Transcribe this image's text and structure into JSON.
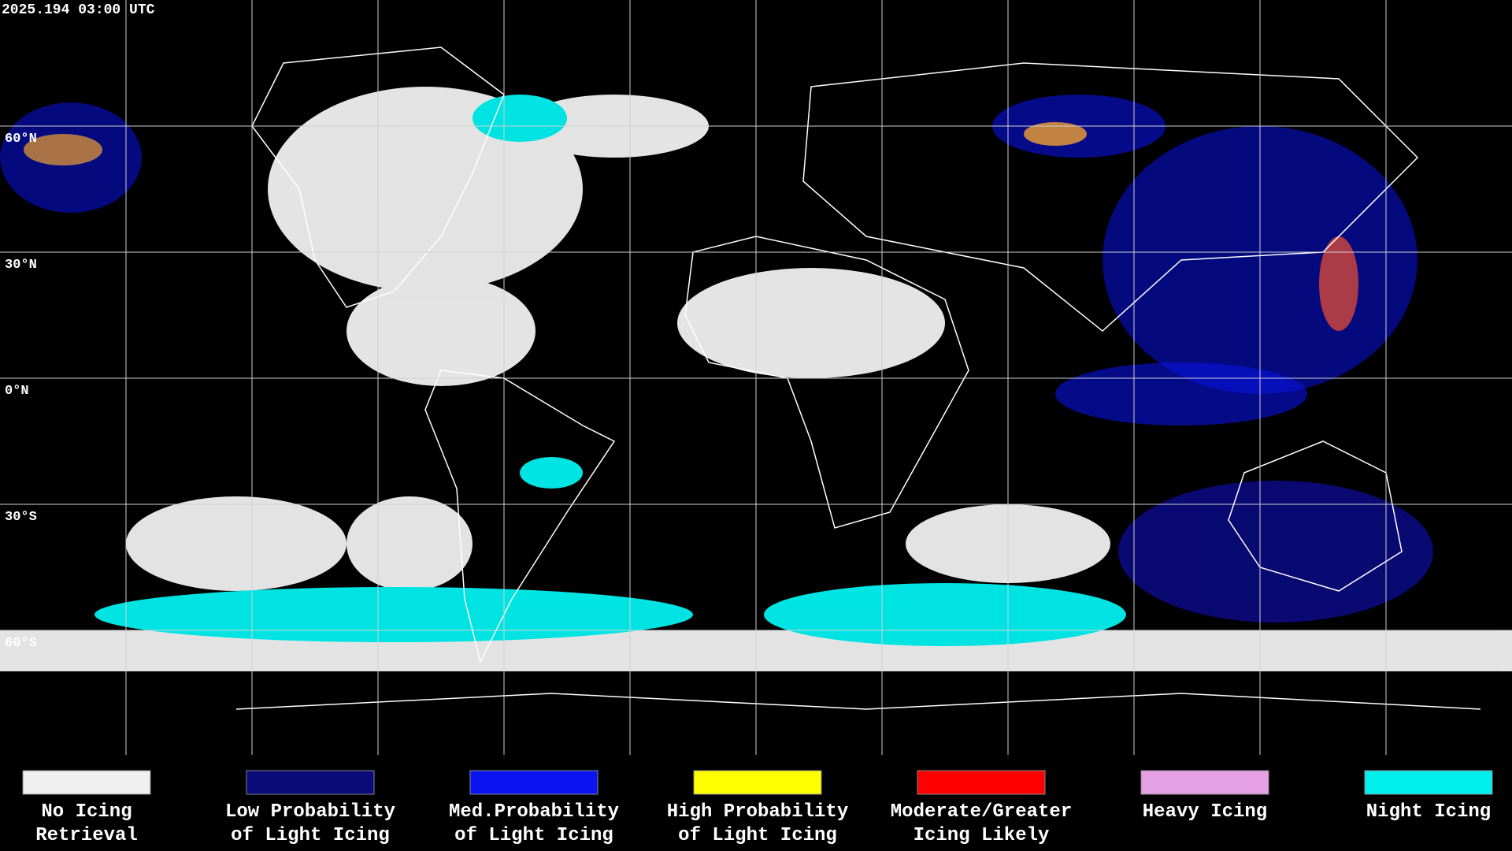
{
  "header": {
    "timestamp": "2025.194 03:00 UTC"
  },
  "map": {
    "latitude_labels": [
      "60°N",
      "30°N",
      "0°N",
      "30°S",
      "60°S"
    ]
  },
  "legend": {
    "items": [
      {
        "label_lines": [
          "No Icing",
          "Retrieval"
        ],
        "color": "#f0f0f0"
      },
      {
        "label_lines": [
          "Low Probability",
          "of Light Icing"
        ],
        "color": "#0a0a78"
      },
      {
        "label_lines": [
          "Med.Probability",
          "of Light Icing"
        ],
        "color": "#0a14f0"
      },
      {
        "label_lines": [
          "High Probability",
          "of Light Icing"
        ],
        "color": "#ffff00"
      },
      {
        "label_lines": [
          "Moderate/Greater",
          "Icing Likely"
        ],
        "color": "#ff0000"
      },
      {
        "label_lines": [
          "Heavy Icing",
          ""
        ],
        "color": "#e6a0e6"
      },
      {
        "label_lines": [
          "Night Icing",
          ""
        ],
        "color": "#00f0f0"
      }
    ]
  }
}
